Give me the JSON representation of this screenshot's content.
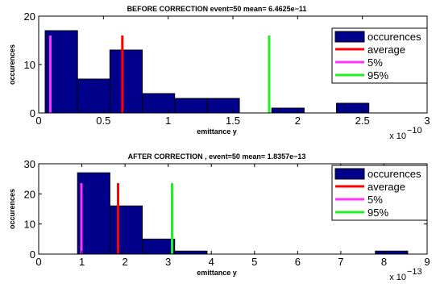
{
  "chart_data": [
    {
      "type": "bar",
      "title": "BEFORE   CORRECTION event=50 mean= 6.4625e−11",
      "xlabel": "emittance y",
      "ylabel": "occurences",
      "x_multiplier": "x 10",
      "x_exponent": "−10",
      "xlim": [
        0,
        3
      ],
      "ylim": [
        0,
        20
      ],
      "xticks": [
        "0",
        "0.5",
        "1",
        "1.5",
        "2",
        "2.5",
        "3"
      ],
      "yticks": [
        "0",
        "10",
        "20"
      ],
      "bin_width": 0.25,
      "bins": [
        {
          "x0": 0.05,
          "count": 17
        },
        {
          "x0": 0.3,
          "count": 7
        },
        {
          "x0": 0.55,
          "count": 13
        },
        {
          "x0": 0.8,
          "count": 4
        },
        {
          "x0": 1.05,
          "count": 3
        },
        {
          "x0": 1.3,
          "count": 3
        },
        {
          "x0": 1.8,
          "count": 1
        },
        {
          "x0": 2.3,
          "count": 2
        }
      ],
      "lines": [
        {
          "name": "average",
          "x": 0.646,
          "color": "#ff0000"
        },
        {
          "name": "5%",
          "x": 0.09,
          "color": "#ff33ff"
        },
        {
          "name": "95%",
          "x": 1.78,
          "color": "#22ee22"
        }
      ],
      "legend": {
        "placement": "top-right",
        "entries": [
          {
            "name": "occurences",
            "kind": "patch",
            "color": "#00008b"
          },
          {
            "name": "average",
            "kind": "line",
            "color": "#ff0000"
          },
          {
            "name": "5%",
            "kind": "line",
            "color": "#ff33ff"
          },
          {
            "name": "95%",
            "kind": "line",
            "color": "#22ee22"
          }
        ]
      }
    },
    {
      "type": "bar",
      "title": "AFTER CORRECTION , event=50 mean= 1.8357e−13",
      "xlabel": "emittance y",
      "ylabel": "occurences",
      "x_multiplier": "x 10",
      "x_exponent": "−13",
      "xlim": [
        0,
        9
      ],
      "ylim": [
        0,
        30
      ],
      "xticks": [
        "0",
        "1",
        "2",
        "3",
        "4",
        "5",
        "6",
        "7",
        "8",
        "9"
      ],
      "yticks": [
        "0",
        "10",
        "20",
        "30"
      ],
      "bin_width": 0.75,
      "bins": [
        {
          "x0": 0.9,
          "count": 27
        },
        {
          "x0": 1.65,
          "count": 16
        },
        {
          "x0": 2.4,
          "count": 5
        },
        {
          "x0": 3.15,
          "count": 1
        },
        {
          "x0": 7.8,
          "count": 1
        }
      ],
      "lines": [
        {
          "name": "average",
          "x": 1.84,
          "color": "#ff0000"
        },
        {
          "name": "5%",
          "x": 0.99,
          "color": "#ff33ff"
        },
        {
          "name": "95%",
          "x": 3.09,
          "color": "#22ee22"
        }
      ],
      "legend": {
        "placement": "top-right",
        "entries": [
          {
            "name": "occurences",
            "kind": "patch",
            "color": "#00008b"
          },
          {
            "name": "average",
            "kind": "line",
            "color": "#ff0000"
          },
          {
            "name": "5%",
            "kind": "line",
            "color": "#ff33ff"
          },
          {
            "name": "95%",
            "kind": "line",
            "color": "#22ee22"
          }
        ]
      }
    }
  ]
}
